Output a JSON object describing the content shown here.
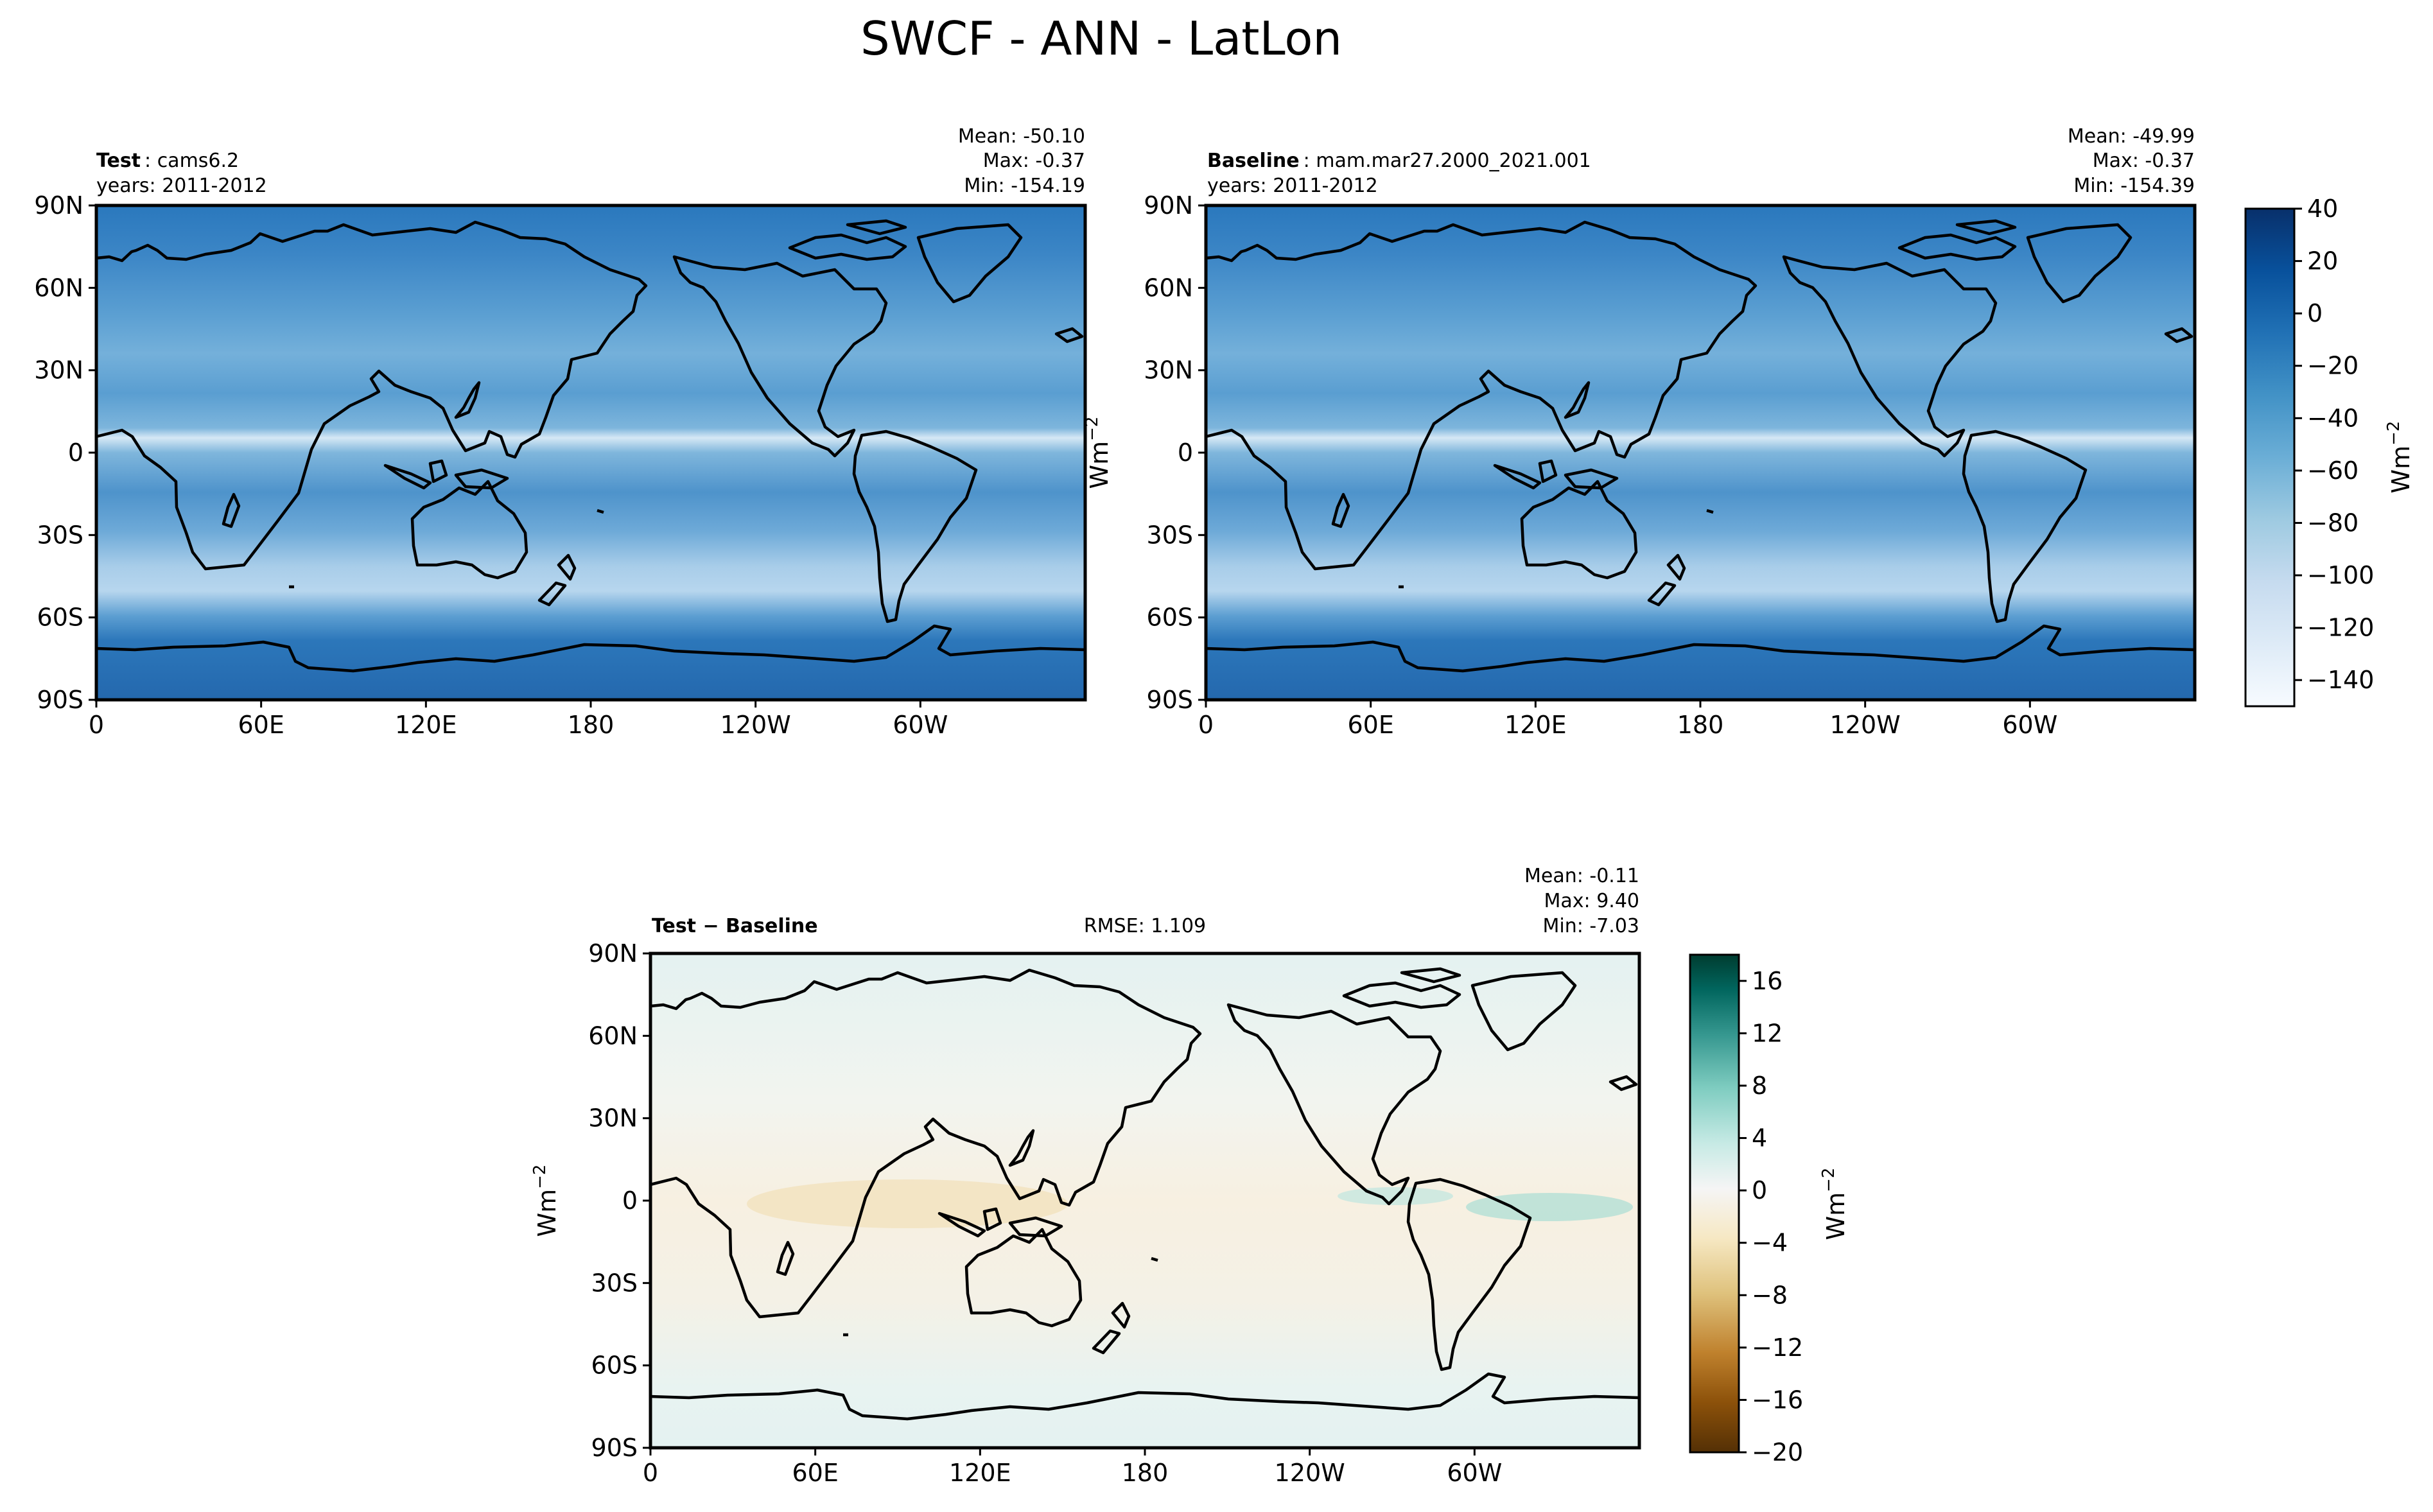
{
  "figure_title": "SWCF - ANN - LatLon",
  "colors": {
    "field_scale": [
      "#f7fbff",
      "#deebf7",
      "#c6dbef",
      "#9ecae1",
      "#6baed6",
      "#4292c6",
      "#2171b5",
      "#08519c",
      "#08306b"
    ],
    "diff_scale": [
      "#543005",
      "#8c510a",
      "#bf812d",
      "#dfc27d",
      "#f6e8c3",
      "#f5f5f5",
      "#c7eae5",
      "#80cdc1",
      "#35978f",
      "#01665e",
      "#003c30"
    ]
  },
  "chart_data": [
    {
      "type": "heatmap",
      "name": "test-panel",
      "label_bold": "Test",
      "label_text": "cams6.2",
      "years": "years: 2011-2012",
      "stats": [
        "Mean: -50.10",
        "Max: -0.37",
        "Min: -154.19"
      ],
      "xticks": [
        "0",
        "60E",
        "120E",
        "180",
        "120W",
        "60W"
      ],
      "yticks": [
        "90N",
        "60N",
        "30N",
        "0",
        "30S",
        "60S",
        "90S"
      ],
      "xlim": [
        0,
        360
      ],
      "ylim": [
        -90,
        90
      ]
    },
    {
      "type": "heatmap",
      "name": "baseline-panel",
      "label_bold": "Baseline",
      "label_text": "mam.mar27.2000_2021.001",
      "years": "years: 2011-2012",
      "stats": [
        "Mean: -49.99",
        "Max: -0.37",
        "Min: -154.39"
      ],
      "xticks": [
        "0",
        "60E",
        "120E",
        "180",
        "120W",
        "60W"
      ],
      "yticks": [
        "90N",
        "60N",
        "30N",
        "0",
        "30S",
        "60S",
        "90S"
      ],
      "xlim": [
        0,
        360
      ],
      "ylim": [
        -90,
        90
      ],
      "ylabel": "Wm",
      "ylabel_exp": "−2"
    },
    {
      "type": "heatmap",
      "name": "difference-panel",
      "label_bold": "Test − Baseline",
      "rmse": "RMSE: 1.109",
      "stats": [
        "Mean: -0.11",
        "Max:  9.40",
        "Min: -7.03"
      ],
      "xticks": [
        "0",
        "60E",
        "120E",
        "180",
        "120W",
        "60W"
      ],
      "yticks": [
        "90N",
        "60N",
        "30N",
        "0",
        "30S",
        "60S",
        "90S"
      ],
      "xlim": [
        0,
        360
      ],
      "ylim": [
        -90,
        90
      ],
      "ylabel": "Wm",
      "ylabel_exp": "−2"
    }
  ],
  "colorbars": [
    {
      "name": "field-colorbar",
      "range": [
        -150,
        40
      ],
      "ticks": [
        "40",
        "20",
        "0",
        "−20",
        "−40",
        "−60",
        "−80",
        "−100",
        "−120",
        "−140"
      ],
      "tick_values": [
        40,
        20,
        0,
        -20,
        -40,
        -60,
        -80,
        -100,
        -120,
        -140
      ],
      "label": "Wm",
      "label_exp": "−2"
    },
    {
      "name": "difference-colorbar",
      "range": [
        -20,
        18
      ],
      "ticks": [
        "16",
        "12",
        "8",
        "4",
        "0",
        "−4",
        "−8",
        "−12",
        "−16",
        "−20"
      ],
      "tick_values": [
        16,
        12,
        8,
        4,
        0,
        -4,
        -8,
        -12,
        -16,
        -20
      ],
      "label": "Wm",
      "label_exp": "−2"
    }
  ]
}
